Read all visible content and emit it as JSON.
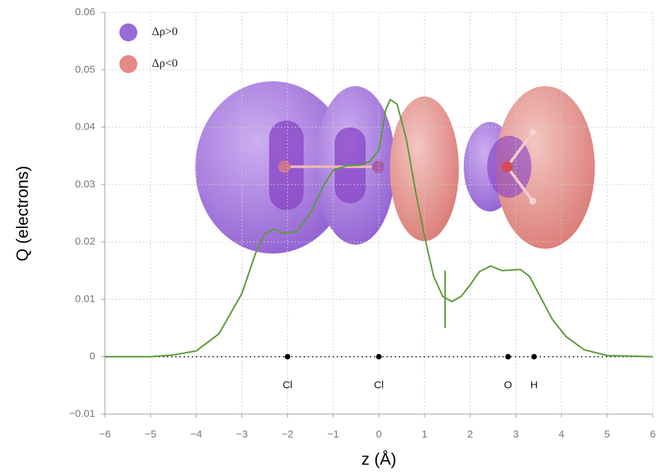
{
  "chart_data": {
    "type": "line",
    "xlabel": "z (Å)",
    "ylabel": "Q (electrons)",
    "xlim": [
      -6,
      6
    ],
    "ylim": [
      -0.01,
      0.06
    ],
    "xticks": [
      {
        "value": -6,
        "label": "−6"
      },
      {
        "value": -5,
        "label": "−5"
      },
      {
        "value": -4,
        "label": "−4"
      },
      {
        "value": -3,
        "label": "−3"
      },
      {
        "value": -2,
        "label": "−2"
      },
      {
        "value": -1,
        "label": "−1"
      },
      0,
      1,
      2,
      3,
      4,
      5,
      6
    ],
    "yticks": [
      {
        "value": -0.01,
        "label": "−0.01"
      },
      0,
      0.01,
      0.02,
      0.03,
      0.04,
      0.05,
      0.06
    ],
    "grid": true,
    "series": [
      {
        "color": "#5b9a3c",
        "x": [
          -6,
          -5,
          -4.5,
          -4,
          -3.5,
          -3,
          -2.7,
          -2.5,
          -2.3,
          -2.1,
          -1.8,
          -1.5,
          -1.2,
          -1,
          -0.7,
          -0.4,
          -0.2,
          0,
          0.15,
          0.25,
          0.4,
          0.6,
          0.8,
          1.0,
          1.2,
          1.4,
          1.6,
          1.8,
          2.0,
          2.2,
          2.45,
          2.7,
          2.9,
          3.1,
          3.3,
          3.5,
          3.8,
          4.1,
          4.5,
          5,
          6
        ],
        "values": [
          0,
          0,
          0.0003,
          0.001,
          0.004,
          0.011,
          0.018,
          0.0215,
          0.0222,
          0.0215,
          0.0218,
          0.025,
          0.03,
          0.0325,
          0.0333,
          0.0334,
          0.034,
          0.036,
          0.043,
          0.0448,
          0.044,
          0.038,
          0.029,
          0.021,
          0.014,
          0.0105,
          0.0096,
          0.0105,
          0.0125,
          0.0148,
          0.0158,
          0.015,
          0.0151,
          0.0152,
          0.014,
          0.011,
          0.0065,
          0.0035,
          0.0012,
          0.0002,
          0
        ]
      }
    ],
    "marker_x": 1.45,
    "marker_y": [
      0.005,
      0.015
    ],
    "atoms": {
      "labels": [
        "Cl",
        "Cl",
        "O",
        "H"
      ],
      "z": [
        -2,
        0,
        2.83,
        3.4
      ]
    },
    "legend": {
      "entries": [
        "Δρ>0",
        "Δρ<0"
      ],
      "colors": [
        "#9a6ad6",
        "#e58a84"
      ]
    }
  }
}
